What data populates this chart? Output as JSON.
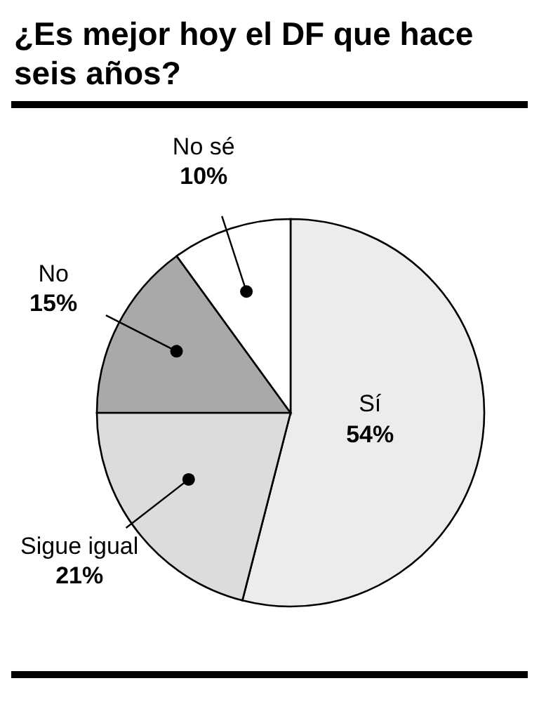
{
  "chart_data": {
    "type": "pie",
    "title": "¿Es mejor hoy el DF que hace seis años?",
    "categories": [
      "Sí",
      "Sigue igual",
      "No",
      "No sé"
    ],
    "values": [
      54,
      21,
      15,
      10
    ],
    "colors": [
      "#ececec",
      "#dcdcdc",
      "#a9a9a9",
      "#ffffff"
    ],
    "value_labels": [
      "54%",
      "21%",
      "15%",
      "10%"
    ],
    "legend": false
  }
}
